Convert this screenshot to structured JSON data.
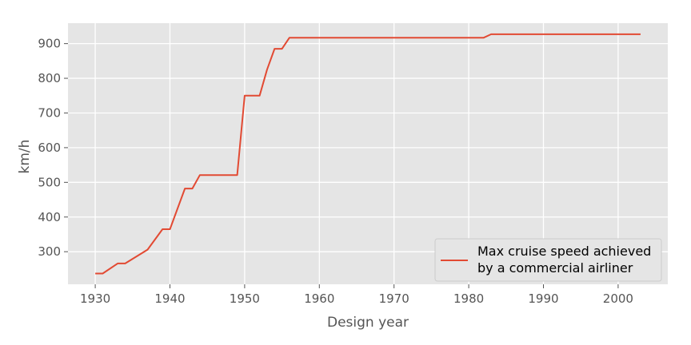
{
  "chart_data": {
    "type": "line",
    "title": "",
    "xlabel": "Design year",
    "ylabel": "km/h",
    "xlim": [
      1926.35,
      2006.65
    ],
    "ylim": [
      206,
      959
    ],
    "xticks": [
      1930,
      1940,
      1950,
      1960,
      1970,
      1980,
      1990,
      2000
    ],
    "yticks": [
      300,
      400,
      500,
      600,
      700,
      800,
      900
    ],
    "grid": true,
    "legend_position": "lower-right",
    "colors": {
      "background": "#e5e5e5",
      "grid": "#ffffff",
      "series": "#e24a33",
      "text": "#555555"
    },
    "series": [
      {
        "name": "Max cruise speed achieved\nby a commercial airliner",
        "x": [
          1930,
          1931,
          1933,
          1934,
          1937,
          1939,
          1940,
          1942,
          1943,
          1944,
          1949,
          1950,
          1952,
          1953,
          1954,
          1955,
          1956,
          1982,
          1983,
          2003
        ],
        "y": [
          237,
          237,
          266,
          266,
          306,
          365,
          365,
          482,
          482,
          521,
          521,
          750,
          750,
          825,
          885,
          885,
          917,
          917,
          927,
          927
        ]
      }
    ]
  }
}
